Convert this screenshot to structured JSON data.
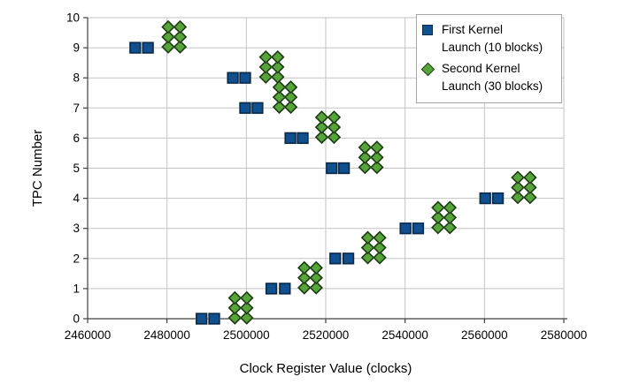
{
  "chart_data": {
    "type": "scatter",
    "title": "",
    "xlabel": "Clock Register Value (clocks)",
    "ylabel": "TPC Number",
    "xlim": [
      2460000,
      2580000
    ],
    "ylim": [
      0,
      10
    ],
    "x_ticks": [
      2460000,
      2480000,
      2500000,
      2520000,
      2540000,
      2560000,
      2580000
    ],
    "y_ticks": [
      0,
      1,
      2,
      3,
      4,
      5,
      6,
      7,
      8,
      9,
      10
    ],
    "grid": true,
    "legend_position": "top-right",
    "series": [
      {
        "name": "First Kernel Launch (10 blocks)",
        "marker": "square",
        "fill": "#10508F",
        "stroke": "#0A2A4A",
        "points": [
          [
            2488700,
            0
          ],
          [
            2491900,
            0
          ],
          [
            2506300,
            1
          ],
          [
            2509700,
            1
          ],
          [
            2522400,
            2
          ],
          [
            2525700,
            2
          ],
          [
            2540100,
            3
          ],
          [
            2543300,
            3
          ],
          [
            2560200,
            4
          ],
          [
            2563400,
            4
          ],
          [
            2521500,
            5
          ],
          [
            2524600,
            5
          ],
          [
            2511100,
            6
          ],
          [
            2514200,
            6
          ],
          [
            2499700,
            7
          ],
          [
            2502800,
            7
          ],
          [
            2496600,
            8
          ],
          [
            2499700,
            8
          ],
          [
            2472000,
            9
          ],
          [
            2475200,
            9
          ]
        ]
      },
      {
        "name": "Second Kernel Launch (30 blocks)",
        "marker": "diamond",
        "fill": "#57A43B",
        "stroke": "#1C3D12",
        "cluster_row_offsets": [
          0.03,
          0.36,
          0.69
        ],
        "clusters": [
          {
            "tpc": 0,
            "x": [
              2497100,
              2500100
            ]
          },
          {
            "tpc": 1,
            "x": [
              2514600,
              2517600
            ]
          },
          {
            "tpc": 2,
            "x": [
              2530600,
              2533600
            ]
          },
          {
            "tpc": 3,
            "x": [
              2548300,
              2551300
            ]
          },
          {
            "tpc": 4,
            "x": [
              2568400,
              2571500
            ]
          },
          {
            "tpc": 5,
            "x": [
              2529900,
              2532900
            ]
          },
          {
            "tpc": 6,
            "x": [
              2519000,
              2522100
            ]
          },
          {
            "tpc": 7,
            "x": [
              2508300,
              2511200
            ]
          },
          {
            "tpc": 8,
            "x": [
              2504900,
              2507900
            ]
          },
          {
            "tpc": 9,
            "x": [
              2480300,
              2483300
            ]
          }
        ]
      }
    ],
    "colors": {
      "gridline": "#c3c3c3",
      "axis": "#404040",
      "halo": "#cccccc",
      "tick_label": "#000000"
    }
  },
  "legend": {
    "items": [
      {
        "line1": "First Kernel",
        "line2": "Launch (10 blocks)",
        "marker": "blue-square"
      },
      {
        "line1": "Second Kernel",
        "line2": "Launch (30 blocks)",
        "marker": "green-diamond"
      }
    ]
  }
}
